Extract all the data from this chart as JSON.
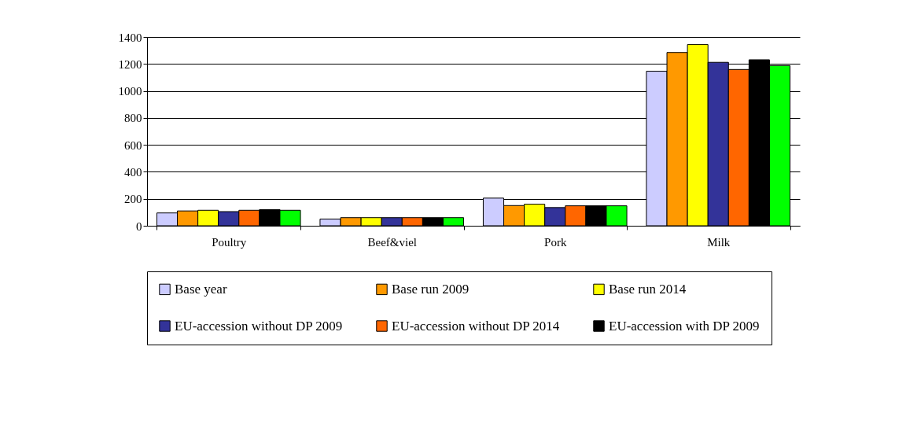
{
  "chart_data": {
    "type": "bar",
    "categories": [
      "Poultry",
      "Beef&viel",
      "Pork",
      "Milk"
    ],
    "series": [
      {
        "name": "Base year",
        "color": "#ccccff",
        "values": [
          95,
          50,
          205,
          1146
        ]
      },
      {
        "name": "Base run 2009",
        "color": "#ff9900",
        "values": [
          110,
          60,
          150,
          1285
        ]
      },
      {
        "name": "Base run 2014",
        "color": "#ffff00",
        "values": [
          115,
          60,
          160,
          1344
        ]
      },
      {
        "name": "EU-accession without DP 2009",
        "color": "#333399",
        "values": [
          105,
          60,
          135,
          1212
        ]
      },
      {
        "name": "EU-accession without DP 2014",
        "color": "#ff6600",
        "values": [
          115,
          60,
          148,
          1159
        ]
      },
      {
        "name": "EU-accession with DP 2009",
        "color": "#000000",
        "values": [
          120,
          60,
          148,
          1231
        ]
      },
      {
        "color": "#00ff00",
        "values": [
          115,
          60,
          148,
          1188
        ]
      }
    ],
    "ylim": [
      0,
      1400
    ],
    "yticks": [
      0,
      200,
      400,
      600,
      800,
      1000,
      1200,
      1400
    ],
    "grid": "y",
    "legend": "bottom"
  }
}
